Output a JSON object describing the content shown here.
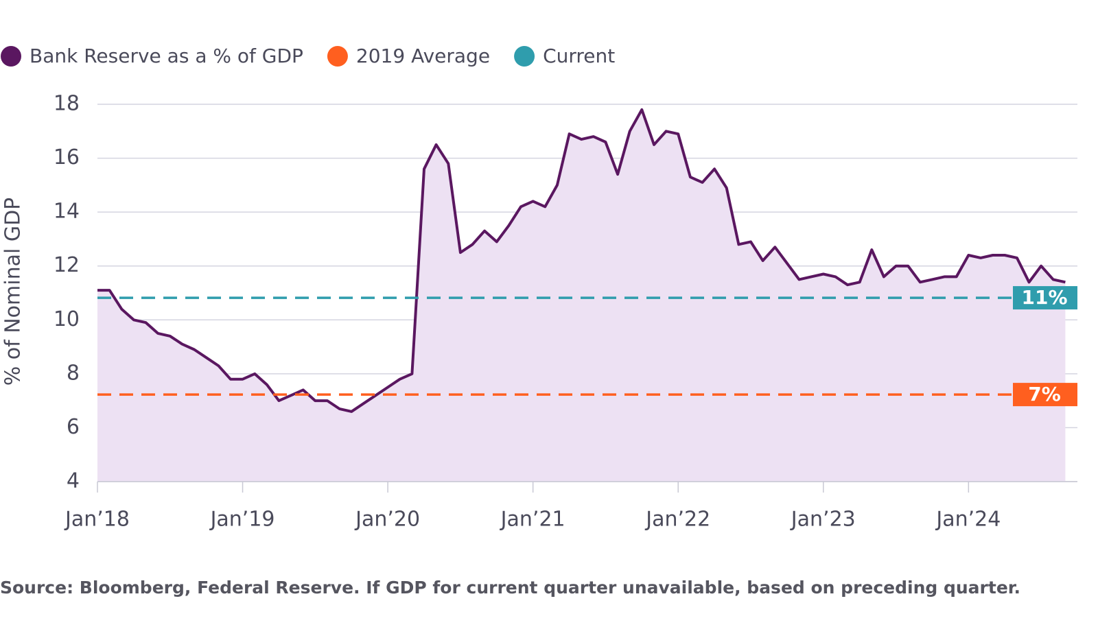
{
  "chart_data": {
    "type": "line",
    "y_label": "% of Nominal GDP",
    "note": "Source: Bloomberg, Federal Reserve. If GDP for current quarter unavailable, based on preceding quarter.",
    "x": [
      "2018-01",
      "2018-02",
      "2018-03",
      "2018-04",
      "2018-05",
      "2018-06",
      "2018-07",
      "2018-08",
      "2018-09",
      "2018-10",
      "2018-11",
      "2018-12",
      "2019-01",
      "2019-02",
      "2019-03",
      "2019-04",
      "2019-05",
      "2019-06",
      "2019-07",
      "2019-08",
      "2019-09",
      "2019-10",
      "2019-11",
      "2019-12",
      "2020-01",
      "2020-02",
      "2020-03",
      "2020-04",
      "2020-05",
      "2020-06",
      "2020-07",
      "2020-08",
      "2020-09",
      "2020-10",
      "2020-11",
      "2020-12",
      "2021-01",
      "2021-02",
      "2021-03",
      "2021-04",
      "2021-05",
      "2021-06",
      "2021-07",
      "2021-08",
      "2021-09",
      "2021-10",
      "2021-11",
      "2021-12",
      "2022-01",
      "2022-02",
      "2022-03",
      "2022-04",
      "2022-05",
      "2022-06",
      "2022-07",
      "2022-08",
      "2022-09",
      "2022-10",
      "2022-11",
      "2022-12",
      "2023-01",
      "2023-02",
      "2023-03",
      "2023-04",
      "2023-05",
      "2023-06",
      "2023-07",
      "2023-08",
      "2023-09",
      "2023-10",
      "2023-11",
      "2023-12",
      "2024-01",
      "2024-02",
      "2024-03",
      "2024-04",
      "2024-05",
      "2024-06",
      "2024-07",
      "2024-08",
      "2024-09"
    ],
    "series": [
      {
        "name": "Bank Reserve as a % of GDP",
        "color": "#5a1760",
        "fill": "#ede1f3",
        "values": [
          11.1,
          11.1,
          10.4,
          10.0,
          9.9,
          9.5,
          9.4,
          9.1,
          8.9,
          8.6,
          8.3,
          7.8,
          7.8,
          8.0,
          7.6,
          7.0,
          7.2,
          7.4,
          7.0,
          7.0,
          6.7,
          6.6,
          6.9,
          7.2,
          7.5,
          7.8,
          8.0,
          15.6,
          16.5,
          15.8,
          12.5,
          12.8,
          13.3,
          12.9,
          13.5,
          14.2,
          14.4,
          14.2,
          15.0,
          16.9,
          16.7,
          16.8,
          16.6,
          15.4,
          17.0,
          17.8,
          16.5,
          17.0,
          16.9,
          15.3,
          15.1,
          15.6,
          14.9,
          12.8,
          12.9,
          12.2,
          12.7,
          12.1,
          11.5,
          11.6,
          11.7,
          11.6,
          11.3,
          11.4,
          12.6,
          11.6,
          12.0,
          12.0,
          11.4,
          11.5,
          11.6,
          11.6,
          12.4,
          12.3,
          12.4,
          12.4,
          12.3,
          11.4,
          12.0,
          11.5,
          11.4
        ]
      }
    ],
    "reference_lines": [
      {
        "name": "2019 Average",
        "color": "#ff5f1f",
        "value": 7.23,
        "value_label": "7%"
      },
      {
        "name": "Current",
        "color": "#2f9dad",
        "value": 10.82,
        "value_label": "11%"
      }
    ],
    "xlim": [
      "2018-01",
      "2024-10"
    ],
    "xticks": [
      {
        "value": "2018-01",
        "label": "Jan’18"
      },
      {
        "value": "2019-01",
        "label": "Jan’19"
      },
      {
        "value": "2020-01",
        "label": "Jan’20"
      },
      {
        "value": "2021-01",
        "label": "Jan’21"
      },
      {
        "value": "2022-01",
        "label": "Jan’22"
      },
      {
        "value": "2023-01",
        "label": "Jan’23"
      },
      {
        "value": "2024-01",
        "label": "Jan’24"
      }
    ],
    "ylim": [
      4,
      18
    ],
    "yticks": [
      4,
      6,
      8,
      10,
      12,
      14,
      16,
      18
    ],
    "grid": true
  }
}
